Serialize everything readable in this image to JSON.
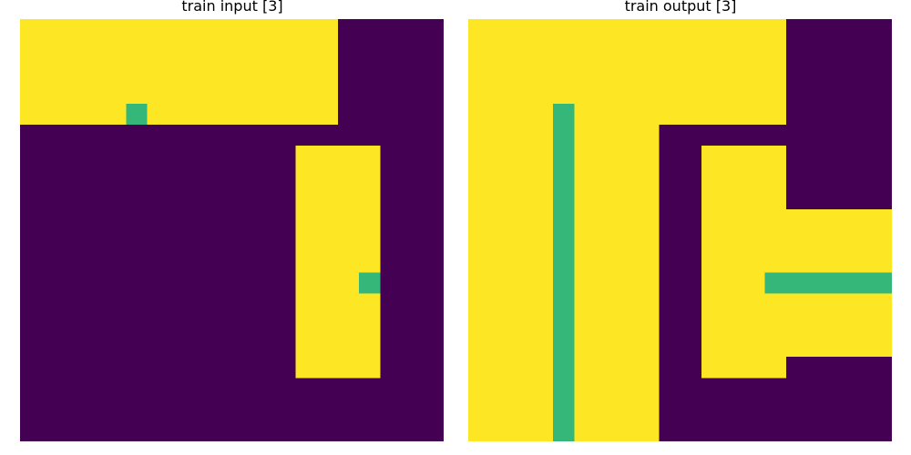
{
  "colors": {
    "0": "#440154",
    "4": "#fde725",
    "3": "#35b779"
  },
  "panels": [
    {
      "title": "train input [3]",
      "grid": [
        "44444444444444400000",
        "44444444444444400000",
        "44444444444444400000",
        "44444444444444400000",
        "44444344444444400000",
        "00000000000000000000",
        "00000000000004444000",
        "00000000000004444000",
        "00000000000004444000",
        "00000000000004444000",
        "00000000000004444000",
        "00000000000004444000",
        "00000000000004443000",
        "00000000000004444000",
        "00000000000004444000",
        "00000000000004444000",
        "00000000000004444000",
        "00000000000000000000",
        "00000000000000000000",
        "00000000000000000000"
      ]
    },
    {
      "title": "train output [3]",
      "grid": [
        "44444444444444400000",
        "44444444444444400000",
        "44444444444444400000",
        "44444444444444400000",
        "44443444444444400000",
        "44443444400000000000",
        "44443444400444400000",
        "44443444400444400000",
        "44443444400444400000",
        "44443444400444444444",
        "44443444400444444444",
        "44443444400444444444",
        "44443444400444333333",
        "44443444400444444444",
        "44443444400444444444",
        "44443444400444444444",
        "44443444400444400000",
        "44443444400000000000",
        "44443444400000000000",
        "44443444400000000000"
      ]
    }
  ]
}
